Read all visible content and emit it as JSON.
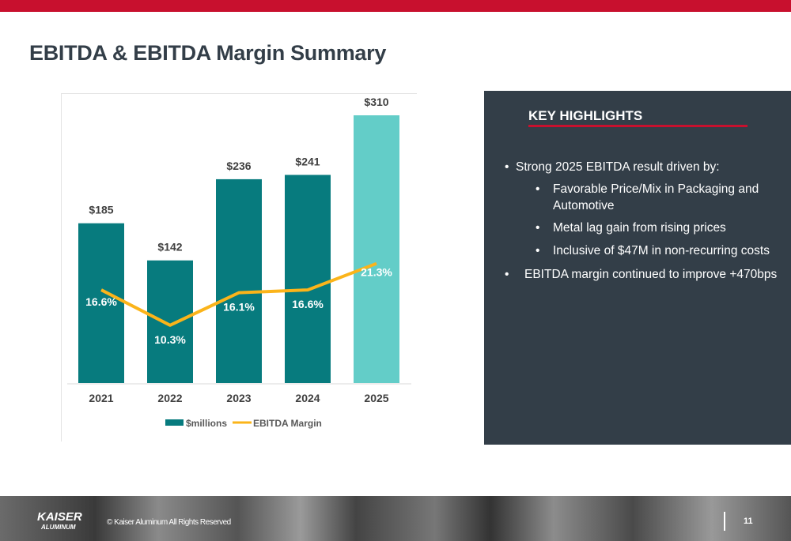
{
  "title": "EBITDA & EBITDA Margin Summary",
  "chart_data": {
    "type": "bar",
    "categories": [
      "2021",
      "2022",
      "2023",
      "2024",
      "2025"
    ],
    "series": [
      {
        "name": "$millions",
        "type": "bar",
        "values": [
          185,
          142,
          236,
          241,
          310
        ],
        "labels": [
          "$185",
          "$142",
          "$236",
          "$241",
          "$310"
        ],
        "colors": [
          "#077b7e",
          "#077b7e",
          "#077b7e",
          "#077b7e",
          "#63cdc8"
        ]
      },
      {
        "name": "EBITDA Margin",
        "type": "line",
        "values": [
          16.6,
          10.3,
          16.1,
          16.6,
          21.3
        ],
        "labels": [
          "16.6%",
          "10.3%",
          "16.1%",
          "16.6%",
          "21.3%"
        ],
        "color": "#fbb41a"
      }
    ],
    "ylim": [
      0,
      310
    ],
    "y2lim": [
      0,
      48
    ],
    "grid": false,
    "legend": "bottom"
  },
  "highlights": {
    "heading": "KEY HIGHLIGHTS",
    "items": [
      {
        "text": "Strong 2025 EBITDA result driven by:",
        "level": 1
      },
      {
        "text": "Favorable Price/Mix in Packaging and Automotive",
        "level": 2
      },
      {
        "text": "Metal lag gain from rising prices",
        "level": 2
      },
      {
        "text": "Inclusive of $47M in non-recurring costs",
        "level": 2
      },
      {
        "text": "EBITDA margin continued to improve +470bps",
        "level": 1
      }
    ],
    "bullet": "•"
  },
  "footer": {
    "logo_top": "KAISER",
    "logo_bottom": "ALUMINUM",
    "copyright": "© Kaiser Aluminum All Rights Reserved",
    "page": "11"
  }
}
